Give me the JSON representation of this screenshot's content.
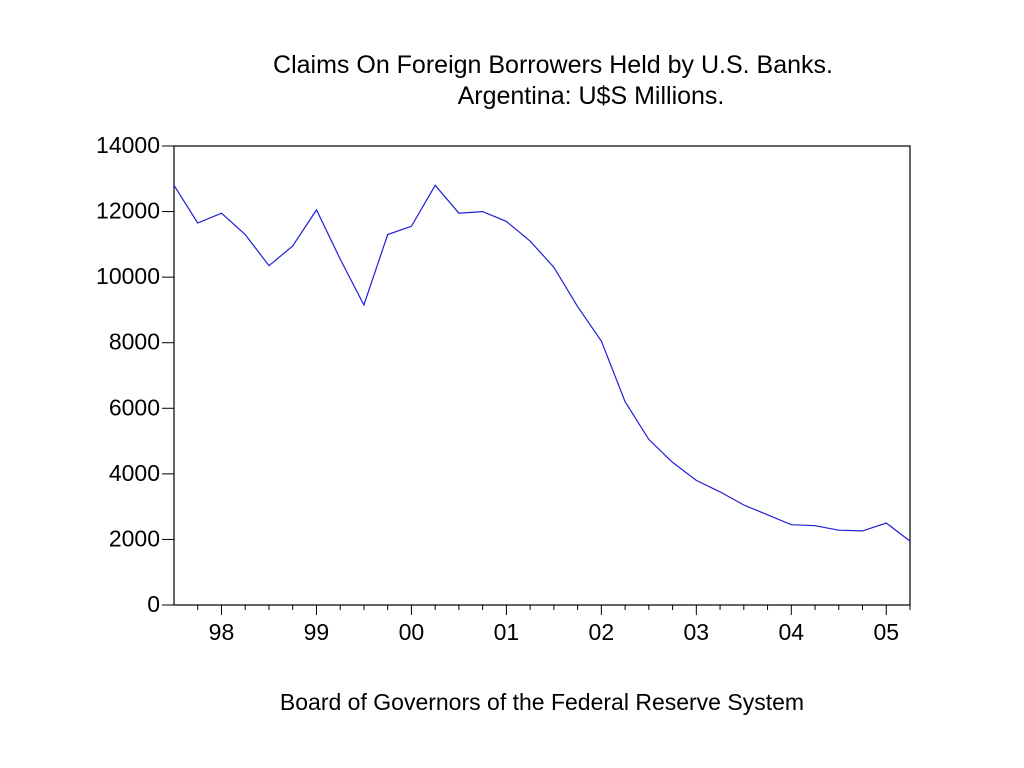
{
  "chart_data": {
    "type": "line",
    "title_line1": "Claims On Foreign Borrowers Held by U.S. Banks.",
    "title_line2": "Argentina: U$S Millions.",
    "footer": "Board of Governors of the Federal Reserve System",
    "ylim": [
      0,
      14000
    ],
    "xlim": [
      1997.5,
      2005.25
    ],
    "y_ticks": [
      0,
      2000,
      4000,
      6000,
      8000,
      10000,
      12000,
      14000
    ],
    "y_tick_labels": [
      "0",
      "2000",
      "4000",
      "6000",
      "8000",
      "10000",
      "12000",
      "14000"
    ],
    "x_tick_labels": [
      {
        "x": 1998,
        "label": "98"
      },
      {
        "x": 1999,
        "label": "99"
      },
      {
        "x": 2000,
        "label": "00"
      },
      {
        "x": 2001,
        "label": "01"
      },
      {
        "x": 2002,
        "label": "02"
      },
      {
        "x": 2003,
        "label": "03"
      },
      {
        "x": 2004,
        "label": "04"
      },
      {
        "x": 2005,
        "label": "05"
      }
    ],
    "x_minor_ticks": [
      1997.75,
      1998.25,
      1998.5,
      1998.75,
      1999.25,
      1999.5,
      1999.75,
      2000.25,
      2000.5,
      2000.75,
      2001.25,
      2001.5,
      2001.75,
      2002.25,
      2002.5,
      2002.75,
      2003.25,
      2003.5,
      2003.75,
      2004.25,
      2004.5,
      2004.75,
      2005.25
    ],
    "line_color": "#1f1fd6",
    "grid": false,
    "series": [
      {
        "x": [
          1997.5,
          1997.75,
          1998,
          1998.25,
          1998.5,
          1998.75,
          1999,
          1999.25,
          1999.5,
          1999.75,
          2000,
          2000.25,
          2000.5,
          2000.75,
          2001,
          2001.25,
          2001.5,
          2001.75,
          2002,
          2002.25,
          2002.5,
          2002.75,
          2003,
          2003.25,
          2003.5,
          2003.75,
          2004,
          2004.25,
          2004.5,
          2004.75,
          2005,
          2005.25
        ],
        "values": [
          12800,
          11650,
          11950,
          11300,
          10350,
          10950,
          12050,
          10550,
          9150,
          11300,
          11550,
          12800,
          11950,
          12000,
          11700,
          11100,
          10300,
          9100,
          8050,
          6200,
          5050,
          4350,
          3800,
          3450,
          3050,
          2750,
          2450,
          2420,
          2280,
          2260,
          2500,
          1950
        ]
      }
    ]
  }
}
